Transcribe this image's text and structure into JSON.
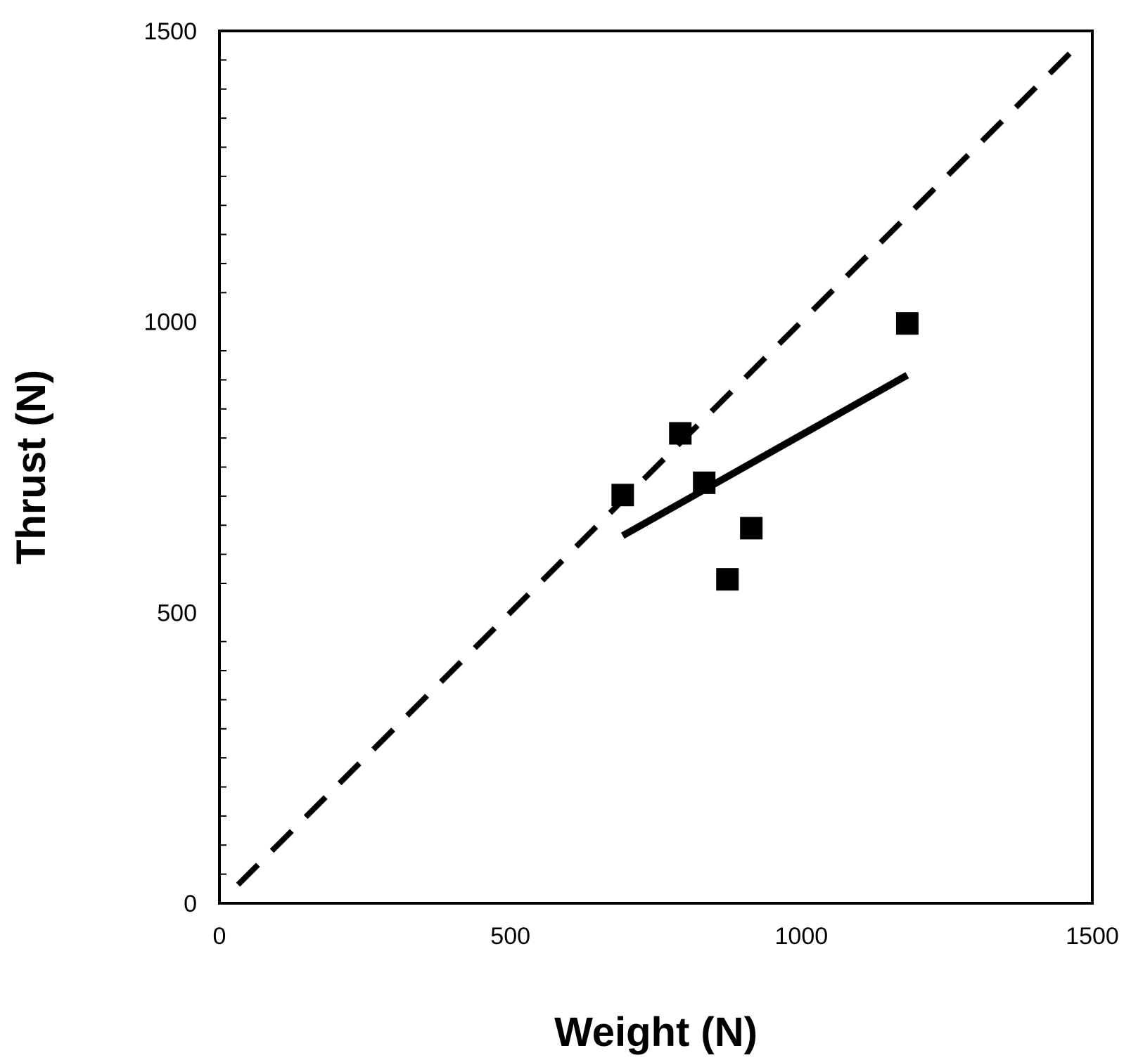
{
  "chart_data": {
    "type": "scatter",
    "xlabel": "Weight (N)",
    "ylabel": "Thrust (N)",
    "xlim": [
      0,
      1500
    ],
    "ylim": [
      0,
      1500
    ],
    "x_ticks": [
      "0",
      "500",
      "1000",
      "1500"
    ],
    "y_ticks": [
      "0",
      "500",
      "1000",
      "1500"
    ],
    "y_minor_step": 50,
    "grid": false,
    "legend": "none",
    "series": [
      {
        "type": "scatter",
        "marker": "square",
        "color": "#000000",
        "points": [
          {
            "x": 693,
            "y": 702
          },
          {
            "x": 792,
            "y": 808
          },
          {
            "x": 833,
            "y": 723
          },
          {
            "x": 873,
            "y": 557
          },
          {
            "x": 914,
            "y": 645
          },
          {
            "x": 1182,
            "y": 997
          }
        ]
      },
      {
        "type": "line",
        "style": "dashed",
        "color": "#000000",
        "points": [
          {
            "x": 32,
            "y": 32
          },
          {
            "x": 1475,
            "y": 1475
          }
        ]
      },
      {
        "type": "line",
        "style": "solid",
        "color": "#000000",
        "points": [
          {
            "x": 693,
            "y": 632
          },
          {
            "x": 1182,
            "y": 908
          }
        ]
      }
    ]
  }
}
